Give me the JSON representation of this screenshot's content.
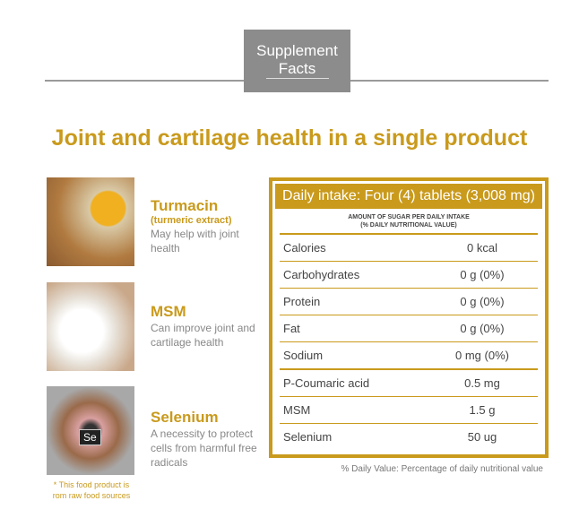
{
  "header": {
    "line1": "Supplement",
    "line2": "Facts"
  },
  "title": "Joint and cartilage health in a single product",
  "ingredients": [
    {
      "name": "Turmacin",
      "sub": "(turmeric extract)",
      "desc": "May help with joint health"
    },
    {
      "name": "MSM",
      "sub": "",
      "desc": "Can improve joint and cartilage health"
    },
    {
      "name": "Selenium",
      "sub": "",
      "desc": "A necessity to protect cells from harmful free radicals"
    }
  ],
  "image_label": "Se",
  "note": "* This food product is rom raw food sources",
  "table": {
    "header": "Daily intake: Four (4) tablets (3,008 mg)",
    "subheader": "AMOUNT OF SUGAR PER DAILY INTAKE\n(% DAILY NUTRITIONAL VALUE)",
    "rows": [
      {
        "k": "Calories",
        "v": "0 kcal"
      },
      {
        "k": "Carbohydrates",
        "v": "0 g (0%)"
      },
      {
        "k": "Protein",
        "v": "0 g (0%)"
      },
      {
        "k": "Fat",
        "v": "0 g (0%)"
      },
      {
        "k": "Sodium",
        "v": "0 mg (0%)"
      },
      {
        "k": "P-Coumaric acid",
        "v": "0.5 mg"
      },
      {
        "k": "MSM",
        "v": "1.5 g"
      },
      {
        "k": "Selenium",
        "v": "50 ug"
      }
    ],
    "footnote": "% Daily Value: Percentage of daily nutritional value"
  },
  "colors": {
    "accent": "#c99a1c",
    "header_box": "#8c8c8c"
  }
}
